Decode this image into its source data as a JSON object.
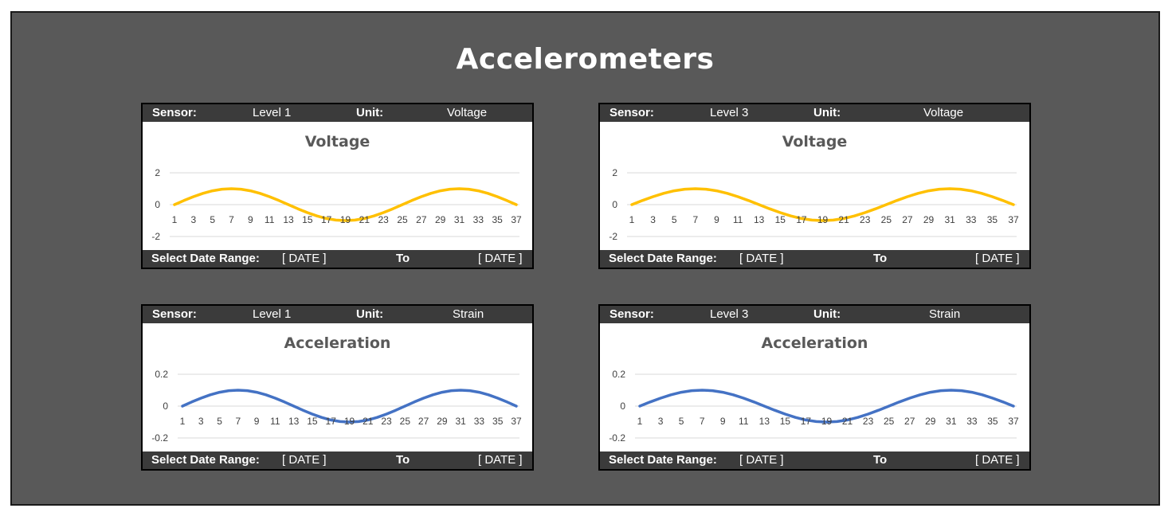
{
  "page": {
    "title": "Accelerometers"
  },
  "labels": {
    "sensor": "Sensor:",
    "unit": "Unit:",
    "range": "Select Date Range:",
    "to": "To",
    "date": "[ DATE ]"
  },
  "panels": [
    {
      "sensor": "Level 1",
      "unit": "Voltage"
    },
    {
      "sensor": "Level 3",
      "unit": "Voltage"
    },
    {
      "sensor": "Level 1",
      "unit": "Strain"
    },
    {
      "sensor": "Level 3",
      "unit": "Strain"
    }
  ],
  "chart_data": [
    {
      "type": "line",
      "title": "Voltage",
      "color": "#FFC000",
      "x": [
        1,
        2,
        3,
        4,
        5,
        6,
        7,
        8,
        9,
        10,
        11,
        12,
        13,
        14,
        15,
        16,
        17,
        18,
        19,
        20,
        21,
        22,
        23,
        24,
        25,
        26,
        27,
        28,
        29,
        30,
        31,
        32,
        33,
        34,
        35,
        36,
        37
      ],
      "x_ticks": [
        "1",
        "3",
        "5",
        "7",
        "9",
        "11",
        "13",
        "15",
        "17",
        "19",
        "21",
        "23",
        "25",
        "27",
        "29",
        "31",
        "33",
        "35",
        "37"
      ],
      "y_ticks": [
        "2",
        "0",
        "-2"
      ],
      "values": [
        0,
        0.26,
        0.5,
        0.71,
        0.87,
        0.97,
        1,
        0.97,
        0.87,
        0.71,
        0.5,
        0.26,
        0,
        -0.26,
        -0.5,
        -0.71,
        -0.87,
        -0.97,
        -1,
        -0.97,
        -0.87,
        -0.71,
        -0.5,
        -0.26,
        0,
        0.26,
        0.5,
        0.71,
        0.87,
        0.97,
        1,
        0.97,
        0.87,
        0.71,
        0.5,
        0.26,
        0
      ],
      "ylim": [
        -2,
        2
      ],
      "grid": true
    },
    {
      "type": "line",
      "title": "Voltage",
      "color": "#FFC000",
      "x": [
        1,
        2,
        3,
        4,
        5,
        6,
        7,
        8,
        9,
        10,
        11,
        12,
        13,
        14,
        15,
        16,
        17,
        18,
        19,
        20,
        21,
        22,
        23,
        24,
        25,
        26,
        27,
        28,
        29,
        30,
        31,
        32,
        33,
        34,
        35,
        36,
        37
      ],
      "x_ticks": [
        "1",
        "3",
        "5",
        "7",
        "9",
        "11",
        "13",
        "15",
        "17",
        "19",
        "21",
        "23",
        "25",
        "27",
        "29",
        "31",
        "33",
        "35",
        "37"
      ],
      "y_ticks": [
        "2",
        "0",
        "-2"
      ],
      "values": [
        0,
        0.26,
        0.5,
        0.71,
        0.87,
        0.97,
        1,
        0.97,
        0.87,
        0.71,
        0.5,
        0.26,
        0,
        -0.26,
        -0.5,
        -0.71,
        -0.87,
        -0.97,
        -1,
        -0.97,
        -0.87,
        -0.71,
        -0.5,
        -0.26,
        0,
        0.26,
        0.5,
        0.71,
        0.87,
        0.97,
        1,
        0.97,
        0.87,
        0.71,
        0.5,
        0.26,
        0
      ],
      "ylim": [
        -2,
        2
      ],
      "grid": true
    },
    {
      "type": "line",
      "title": "Acceleration",
      "color": "#4472C4",
      "x": [
        1,
        2,
        3,
        4,
        5,
        6,
        7,
        8,
        9,
        10,
        11,
        12,
        13,
        14,
        15,
        16,
        17,
        18,
        19,
        20,
        21,
        22,
        23,
        24,
        25,
        26,
        27,
        28,
        29,
        30,
        31,
        32,
        33,
        34,
        35,
        36,
        37
      ],
      "x_ticks": [
        "1",
        "3",
        "5",
        "7",
        "9",
        "11",
        "13",
        "15",
        "17",
        "19",
        "21",
        "23",
        "25",
        "27",
        "29",
        "31",
        "33",
        "35",
        "37"
      ],
      "y_ticks": [
        "0.2",
        "0",
        "-0.2"
      ],
      "values": [
        0,
        0.026,
        0.05,
        0.071,
        0.087,
        0.097,
        0.1,
        0.097,
        0.087,
        0.071,
        0.05,
        0.026,
        0,
        -0.026,
        -0.05,
        -0.071,
        -0.087,
        -0.097,
        -0.1,
        -0.097,
        -0.087,
        -0.071,
        -0.05,
        -0.026,
        0,
        0.026,
        0.05,
        0.071,
        0.087,
        0.097,
        0.1,
        0.097,
        0.087,
        0.071,
        0.05,
        0.026,
        0
      ],
      "ylim": [
        -0.2,
        0.2
      ],
      "grid": true
    },
    {
      "type": "line",
      "title": "Acceleration",
      "color": "#4472C4",
      "x": [
        1,
        2,
        3,
        4,
        5,
        6,
        7,
        8,
        9,
        10,
        11,
        12,
        13,
        14,
        15,
        16,
        17,
        18,
        19,
        20,
        21,
        22,
        23,
        24,
        25,
        26,
        27,
        28,
        29,
        30,
        31,
        32,
        33,
        34,
        35,
        36,
        37
      ],
      "x_ticks": [
        "1",
        "3",
        "5",
        "7",
        "9",
        "11",
        "13",
        "15",
        "17",
        "19",
        "21",
        "23",
        "25",
        "27",
        "29",
        "31",
        "33",
        "35",
        "37"
      ],
      "y_ticks": [
        "0.2",
        "0",
        "-0.2"
      ],
      "values": [
        0,
        0.026,
        0.05,
        0.071,
        0.087,
        0.097,
        0.1,
        0.097,
        0.087,
        0.071,
        0.05,
        0.026,
        0,
        -0.026,
        -0.05,
        -0.071,
        -0.087,
        -0.097,
        -0.1,
        -0.097,
        -0.087,
        -0.071,
        -0.05,
        -0.026,
        0,
        0.026,
        0.05,
        0.071,
        0.087,
        0.097,
        0.1,
        0.097,
        0.087,
        0.071,
        0.05,
        0.026,
        0
      ],
      "ylim": [
        -0.2,
        0.2
      ],
      "grid": true
    }
  ]
}
